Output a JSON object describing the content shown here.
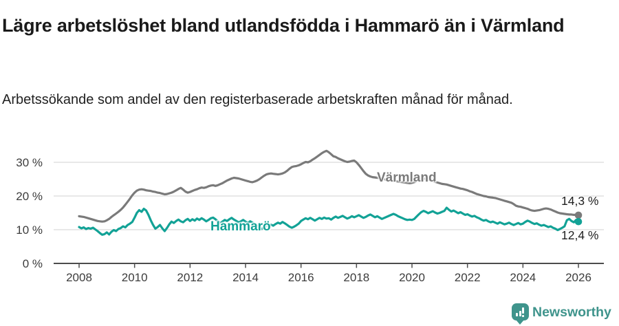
{
  "header": {
    "title": "Lägre arbetslöshet bland utlandsfödda i Hammarö än i Värmland",
    "subtitle": "Arbetssökande som andel av den registerbaserade arbetskraften månad för månad."
  },
  "footer": {
    "brand": "Newsworthy"
  },
  "chart_data": {
    "type": "line",
    "title": "Lägre arbetslöshet bland utlandsfödda i Hammarö än i Värmland",
    "subtitle": "Arbetssökande som andel av den registerbaserade arbetskraften månad för månad.",
    "unit": "%",
    "grid": "horizontal-only",
    "legend_position": "inline-labels",
    "ylim": [
      0,
      35
    ],
    "y_ticks": [
      {
        "value": 0,
        "label": "0 %"
      },
      {
        "value": 10,
        "label": "10 %"
      },
      {
        "value": 20,
        "label": "20 %"
      },
      {
        "value": 30,
        "label": "30 %"
      }
    ],
    "x_ticks": [
      "2008",
      "2010",
      "2012",
      "2014",
      "2016",
      "2018",
      "2020",
      "2022",
      "2024",
      "2026"
    ],
    "x_range": {
      "start": "2008-01",
      "end": "2026-01",
      "interval": "monthly"
    },
    "series": [
      {
        "name": "Värmland",
        "color": "#7a7a7a",
        "end_label": "14,3 %",
        "end_value": 14.3,
        "values": [
          14.0,
          13.9,
          13.8,
          13.6,
          13.4,
          13.2,
          13.0,
          12.8,
          12.6,
          12.5,
          12.4,
          12.5,
          12.8,
          13.2,
          13.8,
          14.3,
          14.8,
          15.3,
          15.9,
          16.6,
          17.4,
          18.3,
          19.2,
          20.2,
          21.0,
          21.6,
          21.9,
          22.0,
          21.9,
          21.7,
          21.6,
          21.5,
          21.3,
          21.2,
          21.0,
          20.9,
          20.7,
          20.5,
          20.6,
          20.8,
          21.0,
          21.3,
          21.7,
          22.1,
          22.4,
          21.9,
          21.3,
          21.0,
          21.2,
          21.5,
          21.8,
          22.0,
          22.3,
          22.5,
          22.4,
          22.6,
          22.9,
          23.1,
          23.2,
          23.0,
          23.2,
          23.5,
          23.8,
          24.2,
          24.6,
          24.9,
          25.2,
          25.4,
          25.3,
          25.2,
          25.0,
          24.8,
          24.6,
          24.4,
          24.2,
          24.1,
          24.3,
          24.6,
          25.0,
          25.5,
          26.0,
          26.4,
          26.6,
          26.7,
          26.6,
          26.5,
          26.4,
          26.5,
          26.7,
          27.0,
          27.5,
          28.1,
          28.6,
          28.8,
          28.9,
          29.1,
          29.4,
          29.8,
          30.1,
          30.0,
          30.3,
          30.8,
          31.2,
          31.7,
          32.2,
          32.7,
          33.1,
          33.4,
          33.0,
          32.4,
          31.8,
          31.6,
          31.2,
          30.9,
          30.6,
          30.3,
          30.1,
          30.2,
          30.4,
          30.5,
          30.0,
          29.2,
          28.3,
          27.4,
          26.6,
          26.1,
          25.8,
          25.6,
          25.5,
          25.4,
          25.3,
          25.2,
          25.0,
          24.8,
          24.7,
          24.6,
          24.5,
          24.4,
          24.3,
          24.2,
          24.1,
          24.0,
          23.9,
          23.8,
          23.9,
          24.1,
          24.4,
          24.8,
          25.1,
          25.2,
          25.1,
          24.9,
          24.7,
          24.5,
          24.2,
          24.0,
          23.8,
          23.6,
          23.5,
          23.4,
          23.2,
          23.0,
          22.8,
          22.6,
          22.4,
          22.2,
          22.1,
          21.9,
          21.7,
          21.4,
          21.2,
          20.9,
          20.6,
          20.4,
          20.2,
          20.0,
          19.9,
          19.7,
          19.6,
          19.5,
          19.4,
          19.2,
          19.0,
          18.8,
          18.6,
          18.4,
          18.2,
          18.0,
          17.6,
          17.1,
          16.9,
          16.8,
          16.6,
          16.4,
          16.2,
          15.9,
          15.7,
          15.6,
          15.7,
          15.8,
          16.0,
          16.2,
          16.3,
          16.2,
          16.0,
          15.7,
          15.4,
          15.1,
          14.9,
          14.8,
          14.7,
          14.6,
          14.5,
          14.5,
          14.4,
          14.4,
          14.3
        ]
      },
      {
        "name": "Hammarö",
        "color": "#12a296",
        "end_label": "12,4 %",
        "end_value": 12.4,
        "values": [
          10.8,
          10.4,
          10.7,
          10.2,
          10.5,
          10.3,
          10.6,
          10.1,
          9.6,
          9.0,
          8.5,
          8.7,
          9.2,
          8.6,
          9.4,
          9.9,
          9.6,
          10.2,
          10.5,
          11.0,
          10.7,
          11.4,
          11.8,
          12.3,
          13.6,
          15.0,
          15.8,
          15.3,
          16.2,
          15.7,
          14.4,
          12.8,
          11.4,
          10.3,
          10.8,
          11.4,
          10.4,
          9.6,
          10.5,
          11.6,
          12.4,
          12.0,
          12.6,
          13.0,
          12.5,
          12.2,
          12.8,
          13.2,
          12.6,
          13.1,
          12.7,
          13.3,
          12.9,
          13.4,
          13.0,
          12.5,
          12.9,
          13.4,
          13.6,
          13.1,
          12.5,
          11.9,
          12.4,
          12.9,
          12.6,
          13.1,
          13.5,
          13.0,
          12.6,
          12.2,
          12.5,
          12.9,
          12.4,
          12.0,
          12.5,
          12.1,
          11.7,
          11.2,
          10.6,
          10.2,
          10.8,
          11.3,
          11.0,
          11.5,
          11.2,
          11.7,
          12.1,
          11.8,
          12.3,
          11.9,
          11.4,
          10.9,
          10.6,
          10.9,
          11.3,
          11.8,
          12.6,
          13.0,
          13.4,
          13.1,
          13.5,
          13.1,
          12.7,
          13.1,
          13.5,
          13.2,
          13.6,
          13.3,
          13.4,
          13.0,
          13.5,
          13.9,
          13.5,
          13.8,
          14.1,
          13.7,
          13.3,
          13.6,
          14.0,
          13.7,
          14.0,
          14.3,
          13.9,
          13.5,
          13.8,
          14.2,
          14.5,
          14.1,
          13.7,
          14.0,
          13.6,
          13.2,
          13.5,
          13.8,
          14.1,
          14.4,
          14.7,
          14.4,
          14.0,
          13.7,
          13.4,
          13.1,
          12.9,
          13.0,
          12.9,
          13.2,
          13.9,
          14.6,
          15.2,
          15.6,
          15.3,
          14.9,
          15.2,
          15.5,
          15.1,
          14.8,
          15.0,
          15.3,
          15.6,
          16.5,
          15.9,
          15.4,
          15.7,
          15.3,
          14.9,
          15.2,
          14.8,
          14.4,
          14.6,
          14.2,
          13.9,
          14.1,
          13.7,
          13.4,
          13.0,
          12.7,
          12.9,
          12.5,
          12.2,
          12.4,
          12.1,
          11.8,
          12.2,
          11.9,
          11.6,
          11.8,
          12.1,
          11.7,
          11.4,
          11.7,
          12.0,
          11.6,
          11.8,
          12.3,
          12.7,
          12.4,
          12.0,
          11.7,
          11.9,
          11.5,
          11.2,
          11.4,
          11.1,
          10.8,
          11.0,
          10.6,
          10.3,
          9.9,
          10.2,
          10.6,
          11.0,
          12.8,
          13.2,
          12.6,
          12.2,
          12.9,
          12.4
        ]
      }
    ]
  }
}
